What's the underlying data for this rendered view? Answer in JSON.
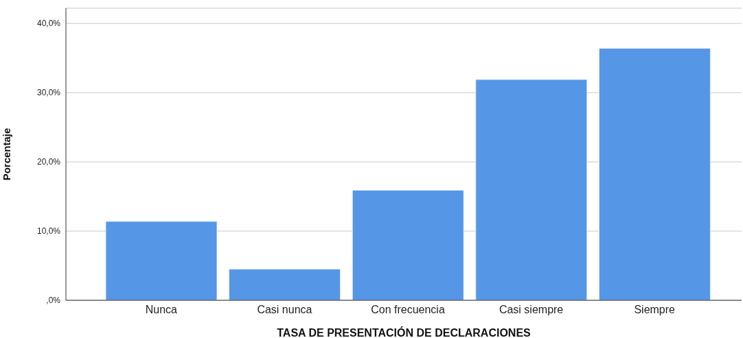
{
  "chart_data": {
    "type": "bar",
    "xlabel": "TASA DE PRESENTACIÓN DE DECLARACIONES",
    "ylabel": "Porcentaje",
    "categories": [
      "Nunca",
      "Casi nunca",
      "Con frecuencia",
      "Casi siempre",
      "Siempre"
    ],
    "values": [
      11.4,
      4.5,
      15.9,
      31.9,
      36.4
    ],
    "color": "#5596e6",
    "ylim": [
      0,
      42.2
    ],
    "yticks": [
      {
        "value": 0,
        "label": ",0%"
      },
      {
        "value": 10,
        "label": "10,0%"
      },
      {
        "value": 20,
        "label": "20,0%"
      },
      {
        "value": 30,
        "label": "30,0%"
      },
      {
        "value": 40,
        "label": "40,0%"
      }
    ],
    "grid": "y"
  }
}
